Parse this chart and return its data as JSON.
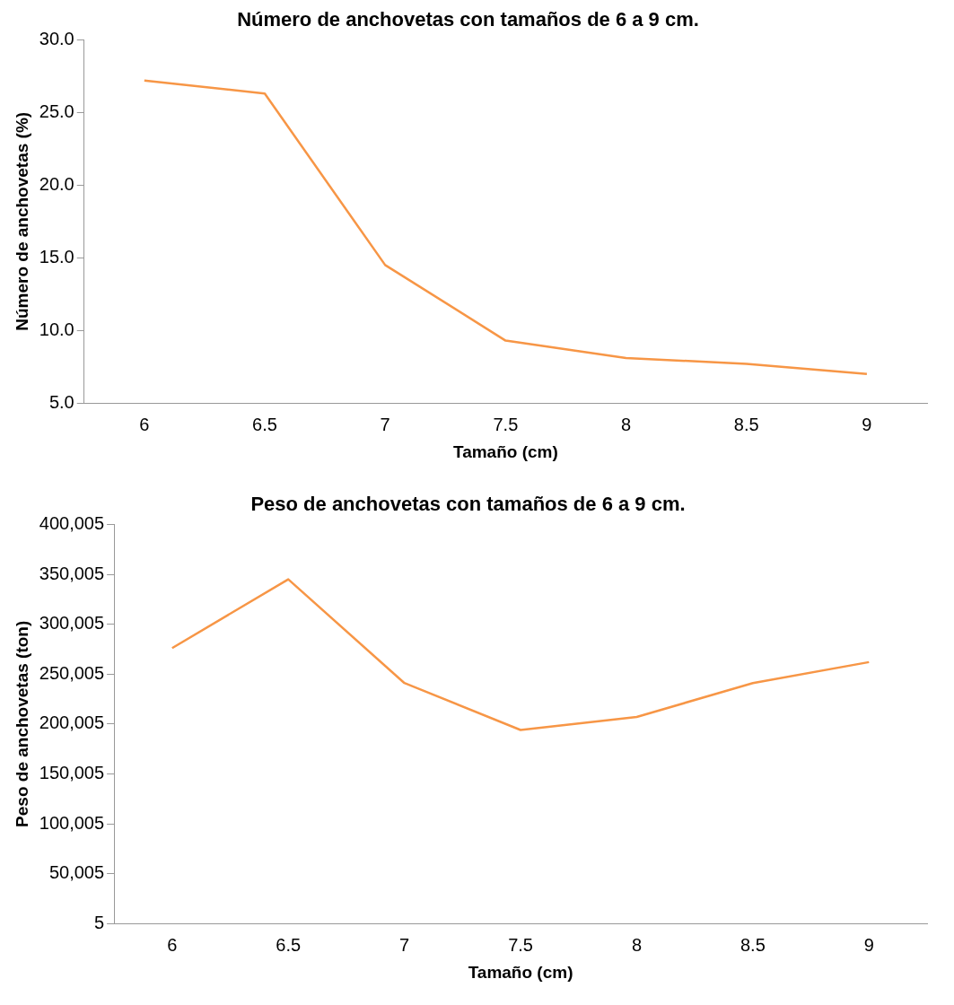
{
  "chart_data": [
    {
      "type": "line",
      "title": "Número de anchovetas con tamaños de 6 a 9 cm.",
      "xlabel": "Tamaño (cm)",
      "ylabel": "Número de anchovetas (%)",
      "categories": [
        "6",
        "6.5",
        "7",
        "7.5",
        "8",
        "8.5",
        "9"
      ],
      "series": [
        {
          "color": "#f79646",
          "values": [
            27.2,
            26.3,
            14.5,
            9.3,
            8.1,
            7.7,
            7.0
          ]
        }
      ],
      "ylim": [
        5,
        30
      ],
      "yticks": [
        {
          "value": 5,
          "label": "5.0"
        },
        {
          "value": 10,
          "label": "10.0"
        },
        {
          "value": 15,
          "label": "15.0"
        },
        {
          "value": 20,
          "label": "20.0"
        },
        {
          "value": 25,
          "label": "25.0"
        },
        {
          "value": 30,
          "label": "30.0"
        }
      ],
      "grid": false,
      "legend": false,
      "marker": "none",
      "line_style": "solid"
    },
    {
      "type": "line",
      "title": "Peso de anchovetas con tamaños de 6 a 9 cm.",
      "xlabel": "Tamaño (cm)",
      "ylabel": "Peso de anchovetas (ton)",
      "categories": [
        "6",
        "6.5",
        "7",
        "7.5",
        "8",
        "8.5",
        "9"
      ],
      "series": [
        {
          "color": "#f79646",
          "values": [
            276000,
            345000,
            241000,
            194000,
            207000,
            241000,
            262000
          ]
        }
      ],
      "ylim": [
        5,
        400005
      ],
      "yticks": [
        {
          "value": 5,
          "label": "5"
        },
        {
          "value": 50005,
          "label": "50,005"
        },
        {
          "value": 100005,
          "label": "100,005"
        },
        {
          "value": 150005,
          "label": "150,005"
        },
        {
          "value": 200005,
          "label": "200,005"
        },
        {
          "value": 250005,
          "label": "250,005"
        },
        {
          "value": 300005,
          "label": "300,005"
        },
        {
          "value": 350005,
          "label": "350,005"
        },
        {
          "value": 400005,
          "label": "400,005"
        }
      ],
      "grid": false,
      "legend": false,
      "marker": "none",
      "line_style": "solid"
    }
  ]
}
